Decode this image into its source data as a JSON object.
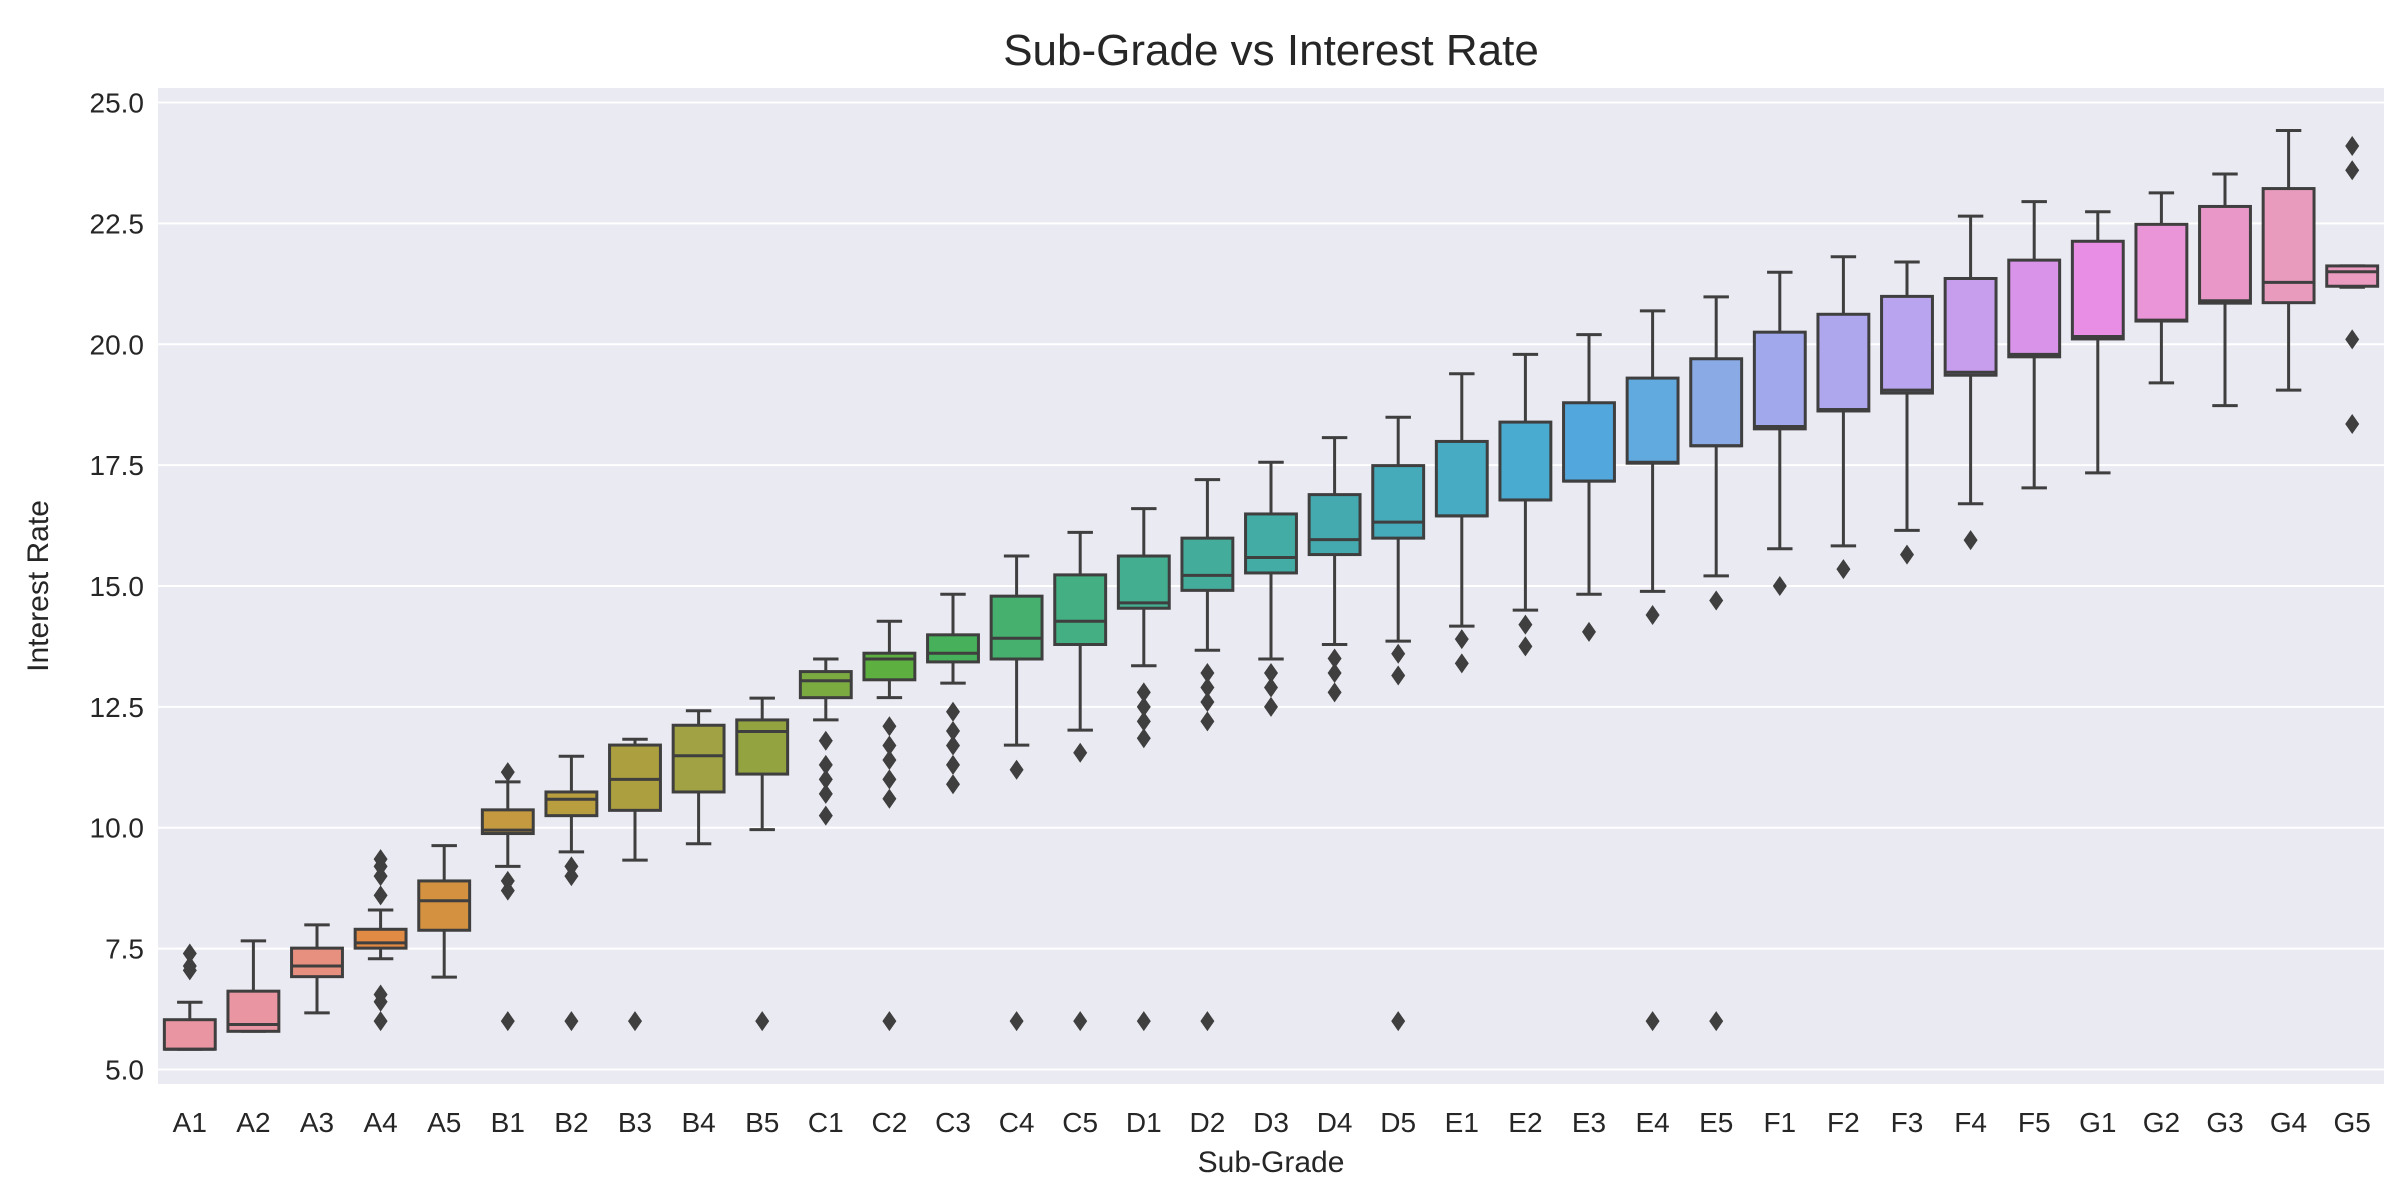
{
  "chart_data": {
    "type": "box",
    "title": "Sub-Grade vs Interest Rate",
    "xlabel": "Sub-Grade",
    "ylabel": "Interest Rate",
    "ylim": [
      4.7,
      25.3
    ],
    "yticks": [
      "5.0",
      "7.5",
      "10.0",
      "12.5",
      "15.0",
      "17.5",
      "20.0",
      "22.5",
      "25.0"
    ],
    "grid": true,
    "categories": [
      "A1",
      "A2",
      "A3",
      "A4",
      "A5",
      "B1",
      "B2",
      "B3",
      "B4",
      "B5",
      "C1",
      "C2",
      "C3",
      "C4",
      "C5",
      "D1",
      "D2",
      "D3",
      "D4",
      "D5",
      "E1",
      "E2",
      "E3",
      "E4",
      "E5",
      "F1",
      "F2",
      "F3",
      "F4",
      "F5",
      "G1",
      "G2",
      "G3",
      "G4",
      "G5"
    ],
    "colors": [
      "#ea96a2",
      "#ea96a2",
      "#e8907f",
      "#e08a43",
      "#d4913f",
      "#c4993f",
      "#b99e3f",
      "#ac9f3f",
      "#a1a243",
      "#93a33f",
      "#7aaa40",
      "#5daf3f",
      "#46b15a",
      "#46b06e",
      "#43af82",
      "#43ae90",
      "#43ac9a",
      "#43aca4",
      "#45aaaf",
      "#45aaba",
      "#47abc3",
      "#4aabd1",
      "#52a7dd",
      "#60aae0",
      "#8aaae6",
      "#a2a8ec",
      "#afa7ee",
      "#b9a5ef",
      "#c79ded",
      "#d994ea",
      "#e98ee5",
      "#e995d8",
      "#e997c9",
      "#e89bbd",
      "#eb9ac0"
    ],
    "boxes": [
      {
        "whislo": 5.42,
        "q1": 5.42,
        "med": 5.42,
        "q3": 6.03,
        "whishi": 6.39,
        "fliers": [
          7.05,
          7.14,
          7.4
        ]
      },
      {
        "whislo": 5.79,
        "q1": 5.79,
        "med": 5.93,
        "q3": 6.62,
        "whishi": 7.66,
        "fliers": []
      },
      {
        "whislo": 6.17,
        "q1": 6.92,
        "med": 7.14,
        "q3": 7.51,
        "whishi": 7.99,
        "fliers": []
      },
      {
        "whislo": 7.29,
        "q1": 7.51,
        "med": 7.62,
        "q3": 7.9,
        "whishi": 8.3,
        "fliers": [
          6.0,
          6.4,
          6.55,
          8.6,
          9.0,
          9.2,
          9.35
        ]
      },
      {
        "whislo": 6.91,
        "q1": 7.88,
        "med": 8.49,
        "q3": 8.9,
        "whishi": 9.63,
        "fliers": []
      },
      {
        "whislo": 9.2,
        "q1": 9.88,
        "med": 9.95,
        "q3": 10.37,
        "whishi": 10.95,
        "fliers": [
          6.0,
          8.7,
          8.9,
          11.15
        ]
      },
      {
        "whislo": 9.5,
        "q1": 10.25,
        "med": 10.59,
        "q3": 10.74,
        "whishi": 11.48,
        "fliers": [
          6.0,
          9.0,
          9.2
        ]
      },
      {
        "whislo": 9.33,
        "q1": 10.36,
        "med": 11.0,
        "q3": 11.71,
        "whishi": 11.83,
        "fliers": [
          6.0
        ]
      },
      {
        "whislo": 9.67,
        "q1": 10.74,
        "med": 11.49,
        "q3": 12.12,
        "whishi": 12.42,
        "fliers": []
      },
      {
        "whislo": 9.96,
        "q1": 11.11,
        "med": 11.99,
        "q3": 12.23,
        "whishi": 12.68,
        "fliers": [
          6.0
        ]
      },
      {
        "whislo": 12.23,
        "q1": 12.69,
        "med": 13.04,
        "q3": 13.23,
        "whishi": 13.49,
        "fliers": [
          10.25,
          10.7,
          11.0,
          11.3,
          11.8
        ]
      },
      {
        "whislo": 12.69,
        "q1": 13.06,
        "med": 13.49,
        "q3": 13.61,
        "whishi": 14.27,
        "fliers": [
          6.0,
          10.6,
          11.0,
          11.4,
          11.7,
          12.1
        ]
      },
      {
        "whislo": 12.99,
        "q1": 13.43,
        "med": 13.61,
        "q3": 13.99,
        "whishi": 14.83,
        "fliers": [
          10.9,
          11.3,
          11.7,
          12.0,
          12.4
        ]
      },
      {
        "whislo": 11.71,
        "q1": 13.49,
        "med": 13.92,
        "q3": 14.79,
        "whishi": 15.62,
        "fliers": [
          6.0,
          11.2
        ]
      },
      {
        "whislo": 12.02,
        "q1": 13.79,
        "med": 14.27,
        "q3": 15.23,
        "whishi": 16.11,
        "fliers": [
          6.0,
          11.55
        ]
      },
      {
        "whislo": 13.35,
        "q1": 14.54,
        "med": 14.65,
        "q3": 15.62,
        "whishi": 16.6,
        "fliers": [
          6.0,
          11.85,
          12.2,
          12.5,
          12.8
        ]
      },
      {
        "whislo": 13.67,
        "q1": 14.91,
        "med": 15.22,
        "q3": 15.99,
        "whishi": 17.2,
        "fliers": [
          6.0,
          12.2,
          12.6,
          12.9,
          13.2
        ]
      },
      {
        "whislo": 13.49,
        "q1": 15.27,
        "med": 15.59,
        "q3": 16.49,
        "whishi": 17.56,
        "fliers": [
          12.5,
          12.9,
          13.2
        ]
      },
      {
        "whislo": 13.79,
        "q1": 15.65,
        "med": 15.96,
        "q3": 16.89,
        "whishi": 18.07,
        "fliers": [
          12.8,
          13.2,
          13.5
        ]
      },
      {
        "whislo": 13.86,
        "q1": 15.99,
        "med": 16.32,
        "q3": 17.49,
        "whishi": 18.49,
        "fliers": [
          6.0,
          13.15,
          13.6
        ]
      },
      {
        "whislo": 14.17,
        "q1": 16.45,
        "med": 16.45,
        "q3": 17.99,
        "whishi": 19.39,
        "fliers": [
          13.4,
          13.9
        ]
      },
      {
        "whislo": 14.5,
        "q1": 16.78,
        "med": 16.78,
        "q3": 18.39,
        "whishi": 19.79,
        "fliers": [
          13.75,
          14.2
        ]
      },
      {
        "whislo": 14.83,
        "q1": 17.17,
        "med": 17.17,
        "q3": 18.79,
        "whishi": 20.2,
        "fliers": [
          14.05
        ]
      },
      {
        "whislo": 14.89,
        "q1": 17.54,
        "med": 17.56,
        "q3": 19.3,
        "whishi": 20.69,
        "fliers": [
          6.0,
          14.4
        ]
      },
      {
        "whislo": 15.21,
        "q1": 17.9,
        "med": 17.9,
        "q3": 19.7,
        "whishi": 20.98,
        "fliers": [
          6.0,
          14.7
        ]
      },
      {
        "whislo": 15.77,
        "q1": 18.25,
        "med": 18.3,
        "q3": 20.25,
        "whishi": 21.49,
        "fliers": [
          15.0
        ]
      },
      {
        "whislo": 15.83,
        "q1": 18.62,
        "med": 18.65,
        "q3": 20.62,
        "whishi": 21.81,
        "fliers": [
          15.35
        ]
      },
      {
        "whislo": 16.15,
        "q1": 18.99,
        "med": 19.05,
        "q3": 20.99,
        "whishi": 21.7,
        "fliers": [
          15.65
        ]
      },
      {
        "whislo": 16.7,
        "q1": 19.36,
        "med": 19.42,
        "q3": 21.36,
        "whishi": 22.65,
        "fliers": [
          15.95
        ]
      },
      {
        "whislo": 17.03,
        "q1": 19.74,
        "med": 19.79,
        "q3": 21.74,
        "whishi": 22.95,
        "fliers": []
      },
      {
        "whislo": 17.34,
        "q1": 20.11,
        "med": 20.16,
        "q3": 22.13,
        "whishi": 22.74,
        "fliers": []
      },
      {
        "whislo": 19.2,
        "q1": 20.48,
        "med": 20.5,
        "q3": 22.48,
        "whishi": 23.13,
        "fliers": []
      },
      {
        "whislo": 18.73,
        "q1": 20.85,
        "med": 20.9,
        "q3": 22.85,
        "whishi": 23.52,
        "fliers": []
      },
      {
        "whislo": 19.05,
        "q1": 20.86,
        "med": 21.28,
        "q3": 23.22,
        "whishi": 24.42,
        "fliers": []
      },
      {
        "whislo": 21.18,
        "q1": 21.2,
        "med": 21.5,
        "q3": 21.62,
        "whishi": 21.62,
        "fliers": [
          18.35,
          20.1,
          23.6,
          24.1
        ]
      }
    ]
  }
}
